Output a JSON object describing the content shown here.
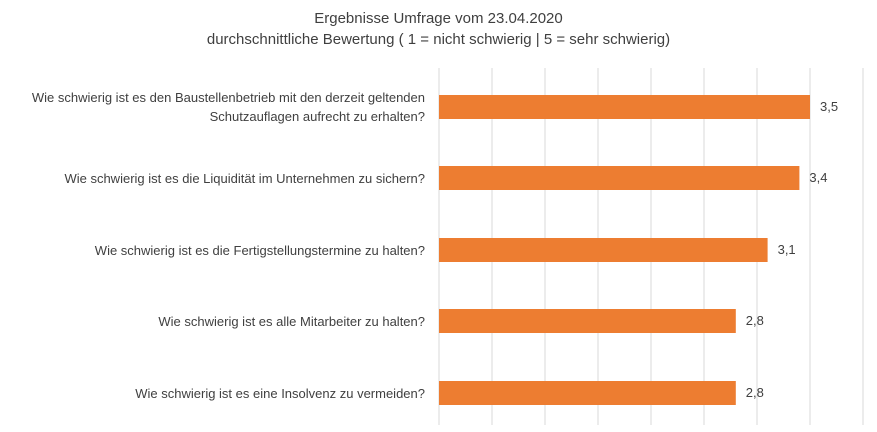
{
  "chart_data": {
    "type": "bar",
    "orientation": "horizontal",
    "title": "Ergebnisse Umfrage vom 23.04.2020",
    "subtitle": "durchschnittliche Bewertung ( 1 = nicht schwierig | 5 = sehr schwierig)",
    "categories": [
      "Wie schwierig ist es den Baustellenbetrieb mit den derzeit geltenden Schutzauflagen aufrecht zu erhalten?",
      "Wie schwierig ist es die Liquidität im Unternehmen zu sichern?",
      "Wie schwierig ist es die Fertigstellungstermine zu halten?",
      "Wie schwierig ist es alle Mitarbeiter zu halten?",
      "Wie schwierig ist es eine Insolvenz zu vermeiden?"
    ],
    "values": [
      3.5,
      3.4,
      3.1,
      2.8,
      2.8
    ],
    "value_labels": [
      "3,5",
      "3,4",
      "3,1",
      "2,8",
      "2,8"
    ],
    "xlim": [
      0,
      4
    ],
    "grid": true,
    "legend": "none",
    "bar_color": "#ED7D31",
    "grid_color": "#D9D9D9"
  }
}
